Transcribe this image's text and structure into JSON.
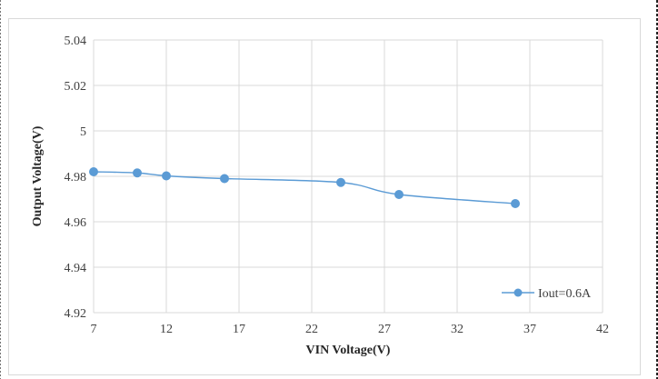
{
  "chart_data": {
    "type": "line",
    "xlabel": "VIN Voltage(V)",
    "ylabel": "Output Voltage(V)",
    "xlim": [
      7,
      42
    ],
    "ylim": [
      4.92,
      5.04
    ],
    "xticks": [
      "7",
      "12",
      "17",
      "22",
      "27",
      "32",
      "37",
      "42"
    ],
    "yticks": [
      "4.92",
      "4.94",
      "4.96",
      "4.98",
      "5",
      "5.02",
      "5.04"
    ],
    "grid": true,
    "legend_position": "bottom-right",
    "series": [
      {
        "name": "Iout=0.6A",
        "color": "#5b9bd5",
        "x": [
          7,
          10,
          12,
          16,
          24,
          28,
          36
        ],
        "y": [
          4.982,
          4.9815,
          4.9802,
          4.979,
          4.9773,
          4.972,
          4.968
        ]
      }
    ]
  }
}
